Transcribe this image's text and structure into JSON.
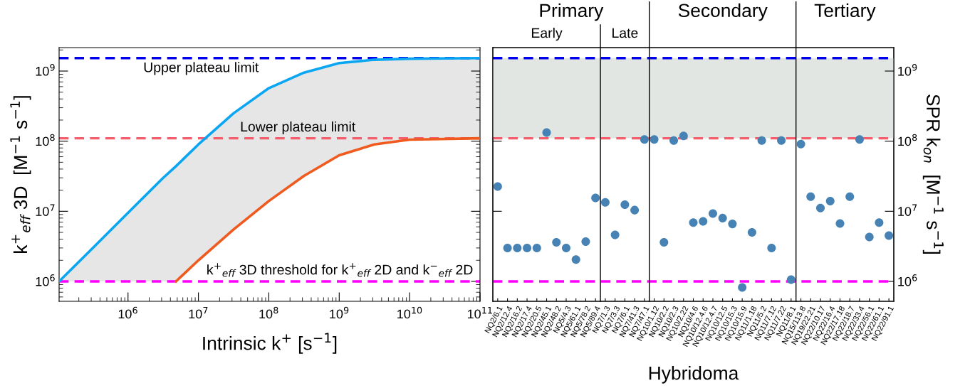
{
  "chart_data": [
    {
      "type": "line",
      "xlabel": "Intrinsic k$^{+}$ [s$^{−1}$]",
      "ylabel": "k$^{+}$$_{eff}$ 3D  [M$^{−1}$ s$^{−1}$]",
      "log": "xy",
      "xlim": [
        105000,
        100000000000
      ],
      "ylim": [
        520000,
        2160000000
      ],
      "xticks": [
        {
          "value": 1000000,
          "label": "10$^{6}$"
        },
        {
          "value": 10000000,
          "label": "10$^{7}$"
        },
        {
          "value": 100000000,
          "label": "10$^{8}$"
        },
        {
          "value": 1000000000,
          "label": "10$^{9}$"
        },
        {
          "value": 10000000000,
          "label": "10$^{10}$"
        },
        {
          "value": 100000000000,
          "label": "10$^{11}$"
        }
      ],
      "yticks": [
        {
          "value": 1000000,
          "label": "10$^{6}$"
        },
        {
          "value": 10000000,
          "label": "10$^{7}$"
        },
        {
          "value": 100000000,
          "label": "10$^{8}$"
        },
        {
          "value": 1000000000,
          "label": "10$^{9}$"
        }
      ],
      "series": [
        {
          "color": "#0aa6f2",
          "x": [
            105000,
            316000,
            1000000,
            3160000,
            4800000,
            10000000,
            31600000,
            100000000,
            316000000,
            1000000000,
            3160000000,
            10000000000,
            100000000000
          ],
          "values": [
            1000000,
            3000000,
            9500000,
            30000000,
            44000000,
            90000000,
            250000000,
            570000000,
            950000000,
            1300000000,
            1450000000,
            1500000000,
            1530000000
          ],
          "lower": [
            1000000,
            1000000,
            1000000,
            1000000,
            1000000,
            2000000,
            5500000,
            14000000,
            32000000,
            63000000,
            90000000,
            105000000,
            110000000
          ],
          "upper": [
            1000000,
            3000000,
            9500000,
            30000000,
            44000000,
            90000000,
            250000000,
            570000000,
            950000000,
            1300000000,
            1450000000,
            1500000000,
            1530000000
          ]
        },
        {
          "color": "#f05a1e",
          "x": [
            4800000,
            10000000,
            31600000,
            100000000,
            316000000,
            1000000000,
            3160000000,
            10000000000,
            100000000000
          ],
          "values": [
            1000000,
            2000000,
            5500000,
            14000000,
            32000000,
            63000000,
            90000000,
            105000000,
            110000000
          ]
        }
      ],
      "ref_lines": [
        {
          "axis": "y",
          "value": 1530000000,
          "label": "Upper plateau limit",
          "color": "#0000ee",
          "line_style": "dashed"
        },
        {
          "axis": "y",
          "value": 110000000,
          "label": "Lower plateau limit",
          "color": "#f45f6b",
          "line_style": "dashed"
        },
        {
          "axis": "y",
          "value": 1000000,
          "label": "k$^{+}$$_{eff}$ 3D threshold for k$^{+}$$_{eff}$ 2D and k$^{−}$$_{eff}$ 2D",
          "color": "#ff00ff",
          "line_style": "dashed"
        }
      ],
      "grid": false
    },
    {
      "type": "scatter",
      "xlabel": "Hybridoma",
      "y2label": "SPR k$_{on}$  [M$^{−1}$ s$^{−1}$]",
      "log": "y2",
      "marker": "circle",
      "categories": [
        "NQ2/6.1",
        "NQ2/12.4",
        "NQ2/16.2",
        "NQ2/17.4",
        "NQ2/20.5",
        "NQ2/45.1",
        "NQ2/48.2",
        "NQ5/4.3",
        "NQ5/61.1",
        "NQ5/78.2",
        "NQ5/89.4",
        "NQ7/1.3",
        "NQ7/3.3",
        "NQ7/6.1",
        "NQ7/41.3",
        "NQ7/47.1",
        "NQ10/1.12",
        "NQ10/2.2",
        "NQ10/2.3",
        "NQ10/2.22",
        "NQ10/4.6",
        "NQ10/12.4.6",
        "NQ10/12.4.7",
        "NQ10/12.5",
        "NQ10/15.3",
        "NQ10/15.9",
        "NQ11/1.18",
        "NQ11/5.2",
        "NQ11/7.12",
        "NQ11/7.22",
        "NQ11/8.1",
        "NQ15/113.8",
        "NQ19/22.21",
        "NQ22/10.17",
        "NQ22/16.4",
        "NQ22/17.18",
        "NQ22/18.7",
        "NQ22/33.4",
        "NQ22/56.1",
        "NQ22/61.1",
        "NQ22/91.1"
      ],
      "y2lim": [
        520000,
        2160000000
      ],
      "y2ticks": [
        {
          "value": 1000000,
          "label": "10$^{6}$"
        },
        {
          "value": 10000000,
          "label": "10$^{7}$"
        },
        {
          "value": 100000000,
          "label": "10$^{8}$"
        },
        {
          "value": 1000000000,
          "label": "10$^{9}$"
        }
      ],
      "series": [
        {
          "color": "#4682b4",
          "axis": "y2",
          "values": [
            22500000,
            3000000,
            3000000,
            3000000,
            3000000,
            133000000,
            3600000,
            3000000,
            2050000,
            3700000,
            15500000,
            13400000,
            4600000,
            12400000,
            10400000,
            106000000,
            106000000,
            3600000,
            102000000,
            119000000,
            6900000,
            7200000,
            9300000,
            8000000,
            6600000,
            820000,
            5000000,
            102000000,
            3000000,
            102000000,
            1060000,
            91000000,
            16200000,
            11100000,
            14000000,
            6700000,
            16200000,
            106000000,
            4300000,
            6900000,
            4500000
          ]
        }
      ],
      "ref_lines": [
        {
          "axis": "y2",
          "value": 1530000000,
          "color": "#0000ee",
          "line_style": "dashed"
        },
        {
          "axis": "y2",
          "value": 110000000,
          "color": "#f45f6b",
          "line_style": "dashed"
        },
        {
          "axis": "y2",
          "value": 1000000,
          "color": "#ff00ff",
          "line_style": "dashed"
        }
      ],
      "bands": [
        {
          "axis": "y2",
          "from": 110000000,
          "to": 1530000000,
          "color": "#e1e6e2"
        }
      ],
      "annotations": [
        "Primary",
        "Early",
        "Late",
        "Secondary",
        "Tertiary"
      ],
      "grid": false
    }
  ]
}
